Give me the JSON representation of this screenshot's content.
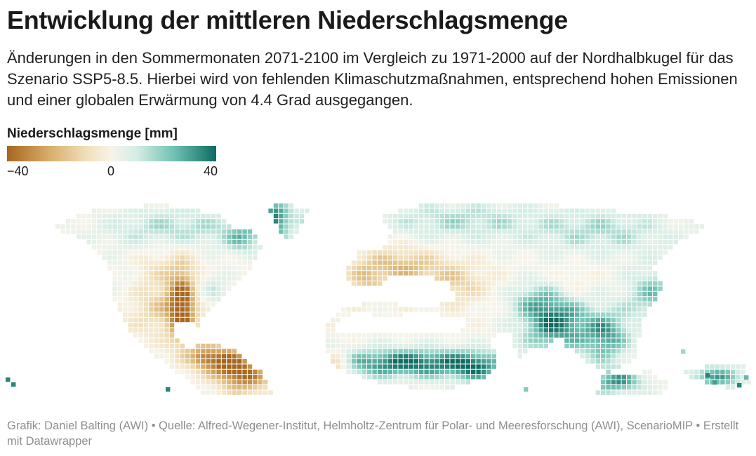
{
  "header": {
    "title": "Entwicklung der mittleren Niederschlagsmenge",
    "subtitle": "Änderungen in den Sommermonaten 2071-2100 im Vergleich zu 1971-2000 auf der Nordhalbkugel für das Szenario SSP5-8.5. Hierbei wird von fehlenden Klimaschutzmaßnahmen, entsprechend hohen Emissionen und einer globalen Erwärmung von 4.4 Grad ausgegangen."
  },
  "legend": {
    "title": "Niederschlagsmenge [mm]",
    "min_label": "−40",
    "mid_label": "0",
    "max_label": "40",
    "colors": [
      "#a7661e",
      "#d7ad69",
      "#f1dfb9",
      "#f7f4ea",
      "#d4ede5",
      "#6fc1b2",
      "#0d6b62"
    ]
  },
  "footer": {
    "credit": "Grafik: Daniel Balting (AWI) • Quelle: Alfred-Wegener-Institut, Helmholtz-Zentrum für Polar- und Meeresforschung (AWI), ScenarioMIP • Erstellt mit Datawrapper"
  }
}
